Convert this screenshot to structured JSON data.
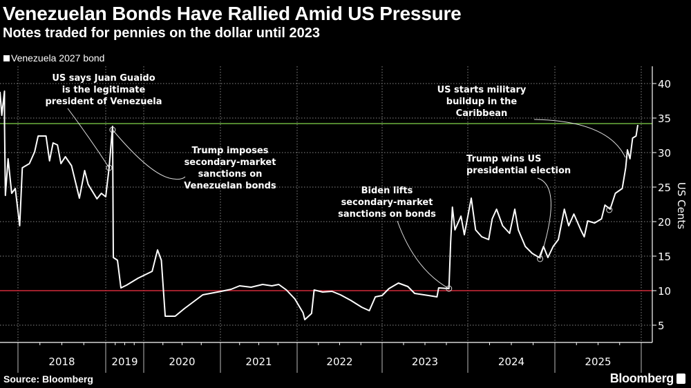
{
  "header": {
    "title": "Venezuelan Bonds Have Rallied Amid US Pressure",
    "subtitle": "Notes traded for pennies on the dollar until 2023"
  },
  "footer": {
    "source": "Source: Bloomberg",
    "brand": "Bloomberg"
  },
  "chart_data": {
    "type": "line",
    "title": "Venezuelan Bonds Have Rallied Amid US Pressure",
    "subtitle": "Notes traded for pennies on the dollar until 2023",
    "xlabel": "",
    "ylabel": "US Cents",
    "ylim": [
      2.5,
      42.5
    ],
    "yticks": [
      5,
      10,
      15,
      20,
      25,
      30,
      35,
      40
    ],
    "xlim": [
      2017.8,
      2026.12
    ],
    "xtick_labels": [
      "2018",
      "2019",
      "2020",
      "2021",
      "2022",
      "2023",
      "2024",
      "2025"
    ],
    "grid": true,
    "legend": {
      "placement": "top-left",
      "entries": [
        "Venezuela 2027 bond"
      ]
    },
    "colors": {
      "line": "#ffffff",
      "upper_ref": "#6db33f",
      "lower_ref": "#d42a3a",
      "grid": "#8a8a8a"
    },
    "reference_lines": [
      {
        "name": "upper",
        "value": 34.2,
        "color": "#6db33f"
      },
      {
        "name": "lower",
        "value": 10.0,
        "color": "#d42a3a"
      }
    ],
    "series": [
      {
        "name": "Venezuela 2027 bond",
        "points": [
          [
            2017.8,
            38.8
          ],
          [
            2017.82,
            35.4
          ],
          [
            2017.85,
            38.9
          ],
          [
            2017.85,
            34.4
          ],
          [
            2017.86,
            23.8
          ],
          [
            2017.89,
            29.1
          ],
          [
            2017.93,
            24.1
          ],
          [
            2017.97,
            24.8
          ],
          [
            2018.02,
            19.4
          ],
          [
            2018.05,
            27.8
          ],
          [
            2018.13,
            28.4
          ],
          [
            2018.19,
            30.1
          ],
          [
            2018.23,
            32.4
          ],
          [
            2018.32,
            32.4
          ],
          [
            2018.36,
            28.8
          ],
          [
            2018.4,
            31.4
          ],
          [
            2018.45,
            31.1
          ],
          [
            2018.49,
            28.4
          ],
          [
            2018.54,
            29.4
          ],
          [
            2018.61,
            28.1
          ],
          [
            2018.7,
            23.4
          ],
          [
            2018.76,
            27.4
          ],
          [
            2018.8,
            25.4
          ],
          [
            2018.9,
            23.3
          ],
          [
            2018.95,
            24.1
          ],
          [
            2019.0,
            23.6
          ],
          [
            2019.09,
            27.8
          ],
          [
            2019.18,
            33.8
          ],
          [
            2019.2,
            14.8
          ],
          [
            2019.31,
            14.4
          ],
          [
            2019.4,
            10.4
          ],
          [
            2019.55,
            10.8
          ],
          [
            2019.85,
            11.8
          ],
          [
            2020.11,
            12.8
          ],
          [
            2020.18,
            15.9
          ],
          [
            2020.23,
            14.4
          ],
          [
            2020.28,
            6.3
          ],
          [
            2020.41,
            6.3
          ],
          [
            2020.53,
            7.4
          ],
          [
            2020.77,
            9.4
          ],
          [
            2021.01,
            9.9
          ],
          [
            2021.14,
            10.2
          ],
          [
            2021.25,
            10.7
          ],
          [
            2021.4,
            10.5
          ],
          [
            2021.55,
            10.9
          ],
          [
            2021.67,
            10.7
          ],
          [
            2021.76,
            10.9
          ],
          [
            2021.86,
            10.1
          ],
          [
            2021.97,
            8.8
          ],
          [
            2022.07,
            6.8
          ],
          [
            2022.09,
            5.8
          ],
          [
            2022.17,
            6.7
          ],
          [
            2022.2,
            10.1
          ],
          [
            2022.3,
            9.8
          ],
          [
            2022.41,
            9.9
          ],
          [
            2022.51,
            9.4
          ],
          [
            2022.63,
            8.6
          ],
          [
            2022.76,
            7.6
          ],
          [
            2022.85,
            7.1
          ],
          [
            2022.92,
            9.1
          ],
          [
            2023.0,
            9.3
          ],
          [
            2023.08,
            10.3
          ],
          [
            2023.19,
            11.1
          ],
          [
            2023.3,
            10.6
          ],
          [
            2023.38,
            9.6
          ],
          [
            2023.54,
            9.3
          ],
          [
            2023.64,
            9.1
          ],
          [
            2023.66,
            10.4
          ],
          [
            2023.78,
            10.3
          ],
          [
            2023.8,
            17.1
          ],
          [
            2023.81,
            19.4
          ],
          [
            2023.82,
            22.1
          ],
          [
            2023.85,
            18.8
          ],
          [
            2023.92,
            20.8
          ],
          [
            2023.96,
            18.1
          ],
          [
            2024.04,
            23.4
          ],
          [
            2024.09,
            18.8
          ],
          [
            2024.16,
            17.8
          ],
          [
            2024.24,
            17.4
          ],
          [
            2024.28,
            20.4
          ],
          [
            2024.33,
            21.8
          ],
          [
            2024.4,
            19.4
          ],
          [
            2024.48,
            18.3
          ],
          [
            2024.54,
            21.8
          ],
          [
            2024.58,
            18.8
          ],
          [
            2024.66,
            16.4
          ],
          [
            2024.74,
            15.4
          ],
          [
            2024.82,
            14.8
          ],
          [
            2024.87,
            16.4
          ],
          [
            2024.92,
            14.8
          ],
          [
            2024.98,
            16.4
          ],
          [
            2025.04,
            17.4
          ],
          [
            2025.11,
            21.8
          ],
          [
            2025.16,
            19.4
          ],
          [
            2025.22,
            21.1
          ],
          [
            2025.3,
            18.8
          ],
          [
            2025.34,
            17.8
          ],
          [
            2025.38,
            20.1
          ],
          [
            2025.46,
            19.8
          ],
          [
            2025.54,
            20.4
          ],
          [
            2025.58,
            22.4
          ],
          [
            2025.64,
            21.8
          ],
          [
            2025.7,
            24.1
          ],
          [
            2025.78,
            24.8
          ],
          [
            2025.82,
            27.8
          ],
          [
            2025.84,
            30.4
          ],
          [
            2025.87,
            29.1
          ],
          [
            2025.9,
            32.1
          ],
          [
            2025.94,
            32.4
          ],
          [
            2025.96,
            34.0
          ]
        ]
      }
    ],
    "annotations": [
      {
        "lines": [
          "US says Juan Guaido",
          "is the legitimate",
          "president of Venezuela"
        ],
        "point": [
          2019.09,
          27.8
        ]
      },
      {
        "lines": [
          "Trump imposes",
          "secondary-market",
          "sanctions on",
          "Venezuelan bonds"
        ],
        "point": [
          2019.18,
          33.3
        ]
      },
      {
        "lines": [
          "Biden lifts",
          "secondary-market",
          "sanctions on bonds"
        ],
        "point": [
          2023.78,
          10.3
        ]
      },
      {
        "lines": [
          "Trump wins US",
          "presidential election"
        ],
        "point": [
          2024.83,
          14.6
        ]
      },
      {
        "lines": [
          "US starts military",
          "buildup in the",
          "Caribbean"
        ],
        "point": [
          2025.63,
          21.7
        ]
      }
    ]
  }
}
